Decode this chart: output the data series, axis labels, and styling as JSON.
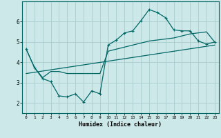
{
  "title": "",
  "xlabel": "Humidex (Indice chaleur)",
  "bg_color": "#cce8e8",
  "grid_color": "#aacccc",
  "line_color": "#006666",
  "xlim": [
    -0.5,
    23.5
  ],
  "ylim": [
    1.5,
    7.0
  ],
  "xticks": [
    0,
    1,
    2,
    3,
    4,
    5,
    6,
    7,
    8,
    9,
    10,
    11,
    12,
    13,
    14,
    15,
    16,
    17,
    18,
    19,
    20,
    21,
    22,
    23
  ],
  "yticks": [
    2,
    3,
    4,
    5,
    6
  ],
  "curve1_x": [
    0,
    1,
    2,
    3,
    4,
    5,
    6,
    7,
    8,
    9,
    10,
    11,
    12,
    13,
    14,
    15,
    16,
    17,
    18,
    19,
    20,
    21,
    22,
    23
  ],
  "curve1_y": [
    4.65,
    3.75,
    3.2,
    3.05,
    2.35,
    2.3,
    2.45,
    2.05,
    2.6,
    2.45,
    4.85,
    5.1,
    5.45,
    5.55,
    6.05,
    6.6,
    6.45,
    6.2,
    5.6,
    5.55,
    5.55,
    5.05,
    4.9,
    5.0
  ],
  "curve2_x": [
    0,
    1,
    2,
    3,
    4,
    5,
    6,
    7,
    8,
    9,
    10,
    11,
    12,
    13,
    14,
    15,
    16,
    17,
    18,
    19,
    20,
    21,
    22,
    23
  ],
  "curve2_y": [
    4.65,
    3.75,
    3.25,
    3.55,
    3.55,
    3.45,
    3.45,
    3.45,
    3.45,
    3.45,
    4.55,
    4.65,
    4.75,
    4.85,
    4.95,
    5.05,
    5.1,
    5.15,
    5.2,
    5.3,
    5.4,
    5.45,
    5.5,
    5.0
  ],
  "curve3_x": [
    0,
    23
  ],
  "curve3_y": [
    3.45,
    4.85
  ]
}
